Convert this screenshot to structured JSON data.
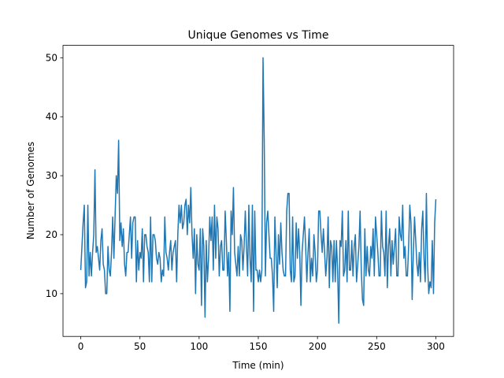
{
  "chart_data": {
    "type": "line",
    "title": "Unique Genomes vs Time",
    "xlabel": "Time (min)",
    "ylabel": "Number of Genomes",
    "x": [
      0,
      1,
      2,
      3,
      4,
      5,
      6,
      7,
      8,
      9,
      10,
      11,
      12,
      13,
      14,
      15,
      16,
      17,
      18,
      19,
      20,
      21,
      22,
      23,
      24,
      25,
      26,
      27,
      28,
      29,
      30,
      31,
      32,
      33,
      34,
      35,
      36,
      37,
      38,
      39,
      40,
      41,
      42,
      43,
      44,
      45,
      46,
      47,
      48,
      49,
      50,
      51,
      52,
      53,
      54,
      55,
      56,
      57,
      58,
      59,
      60,
      61,
      62,
      63,
      64,
      65,
      66,
      67,
      68,
      69,
      70,
      71,
      72,
      73,
      74,
      75,
      76,
      77,
      78,
      79,
      80,
      81,
      82,
      83,
      84,
      85,
      86,
      87,
      88,
      89,
      90,
      91,
      92,
      93,
      94,
      95,
      96,
      97,
      98,
      99,
      100,
      101,
      102,
      103,
      104,
      105,
      106,
      107,
      108,
      109,
      110,
      111,
      112,
      113,
      114,
      115,
      116,
      117,
      118,
      119,
      120,
      121,
      122,
      123,
      124,
      125,
      126,
      127,
      128,
      129,
      130,
      131,
      132,
      133,
      134,
      135,
      136,
      137,
      138,
      139,
      140,
      141,
      142,
      143,
      144,
      145,
      146,
      147,
      148,
      149,
      150,
      151,
      152,
      153,
      154,
      155,
      156,
      157,
      158,
      159,
      160,
      161,
      162,
      163,
      164,
      165,
      166,
      167,
      168,
      169,
      170,
      171,
      172,
      173,
      174,
      175,
      176,
      177,
      178,
      179,
      180,
      181,
      182,
      183,
      184,
      185,
      186,
      187,
      188,
      189,
      190,
      191,
      192,
      193,
      194,
      195,
      196,
      197,
      198,
      199,
      200,
      201,
      202,
      203,
      204,
      205,
      206,
      207,
      208,
      209,
      210,
      211,
      212,
      213,
      214,
      215,
      216,
      217,
      218,
      219,
      220,
      221,
      222,
      223,
      224,
      225,
      226,
      227,
      228,
      229,
      230,
      231,
      232,
      233,
      234,
      235,
      236,
      237,
      238,
      239,
      240,
      241,
      242,
      243,
      244,
      245,
      246,
      247,
      248,
      249,
      250,
      251,
      252,
      253,
      254,
      255,
      256,
      257,
      258,
      259,
      260,
      261,
      262,
      263,
      264,
      265,
      266,
      267,
      268,
      269,
      270,
      271,
      272,
      273,
      274,
      275,
      276,
      277,
      278,
      279,
      280,
      281,
      282,
      283,
      284,
      285,
      286,
      287,
      288,
      289,
      290,
      291,
      292,
      293,
      294,
      295,
      296,
      297,
      298,
      299,
      300
    ],
    "series": [
      {
        "color": "#1f77b4",
        "values": [
          14,
          18,
          22,
          25,
          11,
          12,
          25,
          13,
          17,
          13,
          17,
          20,
          31,
          17,
          18,
          16,
          14,
          19,
          21,
          15,
          14,
          10,
          10,
          18,
          14,
          13,
          17,
          23,
          16,
          23,
          30,
          27,
          36,
          19,
          22,
          18,
          21,
          15,
          13,
          17,
          17,
          20,
          23,
          16,
          22,
          23,
          23,
          12,
          19,
          14,
          17,
          16,
          21,
          12,
          20,
          20,
          18,
          17,
          12,
          23,
          12,
          20,
          20,
          19,
          16,
          15,
          17,
          16,
          12,
          14,
          13,
          23,
          17,
          16,
          14,
          17,
          19,
          14,
          17,
          18,
          19,
          12,
          20,
          25,
          22,
          25,
          21,
          22,
          25,
          26,
          20,
          25,
          22,
          28,
          20,
          16,
          21,
          10,
          20,
          15,
          14,
          21,
          8,
          21,
          18,
          6,
          19,
          12,
          16,
          23,
          19,
          23,
          14,
          25,
          16,
          23,
          21,
          13,
          18,
          19,
          14,
          14,
          24,
          19,
          13,
          17,
          7,
          24,
          20,
          28,
          17,
          15,
          13,
          18,
          13,
          20,
          19,
          14,
          18,
          24,
          18,
          13,
          25,
          16,
          12,
          25,
          7,
          24,
          14,
          14,
          12,
          14,
          12,
          14,
          50,
          36,
          13,
          22,
          24,
          20,
          16,
          16,
          13,
          7,
          23,
          17,
          11,
          20,
          15,
          22,
          17,
          14,
          13,
          13,
          24,
          27,
          27,
          14,
          12,
          23,
          12,
          13,
          22,
          16,
          21,
          17,
          8,
          17,
          20,
          23,
          18,
          12,
          17,
          21,
          12,
          16,
          13,
          20,
          17,
          12,
          14,
          24,
          24,
          20,
          17,
          21,
          17,
          13,
          16,
          23,
          11,
          19,
          18,
          12,
          19,
          12,
          19,
          14,
          5,
          19,
          18,
          24,
          13,
          14,
          19,
          12,
          24,
          14,
          14,
          19,
          13,
          18,
          20,
          12,
          15,
          18,
          24,
          14,
          9,
          8,
          21,
          13,
          18,
          14,
          13,
          18,
          16,
          21,
          13,
          23,
          20,
          17,
          13,
          13,
          24,
          18,
          17,
          13,
          24,
          11,
          18,
          21,
          13,
          19,
          15,
          18,
          21,
          13,
          13,
          23,
          20,
          19,
          25,
          16,
          18,
          13,
          13,
          18,
          25,
          22,
          9,
          17,
          23,
          19,
          15,
          13,
          17,
          12,
          21,
          24,
          16,
          12,
          27,
          15,
          10,
          12,
          11,
          19,
          10,
          22,
          26
        ]
      }
    ],
    "xlim": [
      -15,
      315
    ],
    "xticks": [
      0,
      50,
      100,
      150,
      200,
      250,
      300
    ],
    "ylim": [
      2.75,
      52.1
    ],
    "yticks": [
      10,
      20,
      30,
      40,
      50
    ]
  }
}
